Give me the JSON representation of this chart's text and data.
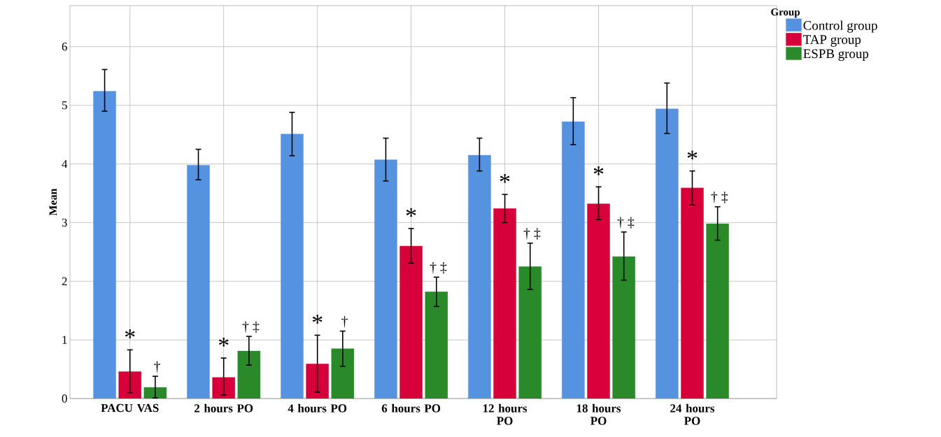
{
  "chart_data": {
    "type": "bar",
    "ylabel": "Mean",
    "legend_title": "Group",
    "legend": "top right",
    "grid": true,
    "categories": [
      "PACU VAS",
      "2 hours PO",
      "4 hours PO",
      "6 hours PO",
      "12 hours PO",
      "18 hours PO",
      "24 hours PO"
    ],
    "ylim": [
      0,
      6.7
    ],
    "yticks": [
      0,
      1,
      2,
      3,
      4,
      5,
      6
    ],
    "series": [
      {
        "name": "Control group",
        "color": "#5592e0",
        "values": [
          5.24,
          3.98,
          4.51,
          4.07,
          4.15,
          4.72,
          4.94
        ],
        "errors": [
          [
            4.9,
            5.61
          ],
          [
            3.73,
            4.25
          ],
          [
            4.14,
            4.88
          ],
          [
            3.71,
            4.44
          ],
          [
            3.88,
            4.44
          ],
          [
            4.33,
            5.13
          ],
          [
            4.52,
            5.38
          ]
        ]
      },
      {
        "name": "TAP group",
        "color": "#d8003a",
        "values": [
          0.46,
          0.36,
          0.59,
          2.6,
          3.24,
          3.32,
          3.59
        ],
        "errors": [
          [
            0.1,
            0.83
          ],
          [
            0.06,
            0.69
          ],
          [
            0.11,
            1.08
          ],
          [
            2.31,
            2.9
          ],
          [
            3.0,
            3.48
          ],
          [
            3.05,
            3.61
          ],
          [
            3.3,
            3.88
          ]
        ]
      },
      {
        "name": "ESPB group",
        "color": "#2a8a2a",
        "values": [
          0.19,
          0.81,
          0.85,
          1.82,
          2.25,
          2.42,
          2.98
        ],
        "errors": [
          [
            0.01,
            0.38
          ],
          [
            0.57,
            1.06
          ],
          [
            0.55,
            1.15
          ],
          [
            1.57,
            2.07
          ],
          [
            1.86,
            2.65
          ],
          [
            2.02,
            2.84
          ],
          [
            2.7,
            3.27
          ]
        ]
      }
    ],
    "annotations": [
      "*",
      "†",
      "*",
      "† ‡",
      "*",
      "†",
      "*",
      "† ‡",
      "*",
      "† ‡",
      "*",
      "† ‡",
      "*",
      "† ‡"
    ]
  }
}
